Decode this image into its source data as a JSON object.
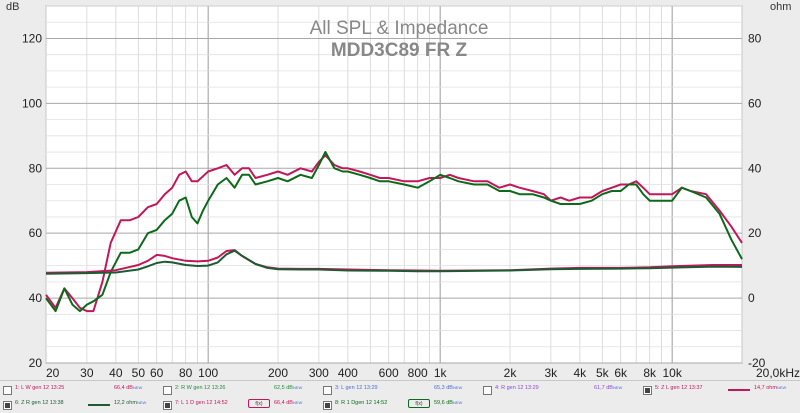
{
  "chart_data": {
    "type": "line",
    "title": "All SPL & Impedance",
    "subtitle": "MDD3C89 FR Z",
    "ylabel_left": "dB",
    "ylabel_right": "ohm",
    "x_scale": "log",
    "xlim": [
      20,
      20000
    ],
    "ylim_left": [
      20,
      130
    ],
    "ylim_right": [
      -20,
      90
    ],
    "x_ticks": [
      {
        "v": 20,
        "label": "20"
      },
      {
        "v": 30,
        "label": "30"
      },
      {
        "v": 40,
        "label": "40"
      },
      {
        "v": 50,
        "label": "50"
      },
      {
        "v": 60,
        "label": "60"
      },
      {
        "v": 80,
        "label": "80"
      },
      {
        "v": 100,
        "label": "100"
      },
      {
        "v": 200,
        "label": "200"
      },
      {
        "v": 300,
        "label": "300"
      },
      {
        "v": 400,
        "label": "400"
      },
      {
        "v": 600,
        "label": "600"
      },
      {
        "v": 800,
        "label": "800"
      },
      {
        "v": 1000,
        "label": "1k"
      },
      {
        "v": 2000,
        "label": "2k"
      },
      {
        "v": 3000,
        "label": "3k"
      },
      {
        "v": 4000,
        "label": "4k"
      },
      {
        "v": 5000,
        "label": "5k"
      },
      {
        "v": 6000,
        "label": "6k"
      },
      {
        "v": 8000,
        "label": "8k"
      },
      {
        "v": 10000,
        "label": "10k"
      },
      {
        "v": 20000,
        "label": "20,0kHz"
      }
    ],
    "y_ticks_left": [
      20,
      40,
      60,
      80,
      100,
      120
    ],
    "y_ticks_right": [
      -20,
      0,
      20,
      40,
      60,
      80
    ],
    "grid": true,
    "series": [
      {
        "name": "L 1 D gen 12 14:52",
        "axis": "left",
        "color": "#c0185a",
        "points": [
          [
            20,
            41
          ],
          [
            22,
            37
          ],
          [
            24,
            43
          ],
          [
            26,
            40
          ],
          [
            28,
            37
          ],
          [
            30,
            36
          ],
          [
            32,
            36
          ],
          [
            35,
            45
          ],
          [
            38,
            57
          ],
          [
            42,
            64
          ],
          [
            46,
            64
          ],
          [
            50,
            65
          ],
          [
            55,
            68
          ],
          [
            60,
            69
          ],
          [
            65,
            72
          ],
          [
            70,
            74
          ],
          [
            75,
            78
          ],
          [
            80,
            79
          ],
          [
            85,
            76
          ],
          [
            90,
            76
          ],
          [
            100,
            79
          ],
          [
            110,
            80
          ],
          [
            120,
            81
          ],
          [
            130,
            78
          ],
          [
            140,
            80
          ],
          [
            150,
            80
          ],
          [
            160,
            77
          ],
          [
            180,
            78
          ],
          [
            200,
            79
          ],
          [
            220,
            78
          ],
          [
            250,
            80
          ],
          [
            280,
            79
          ],
          [
            300,
            82
          ],
          [
            320,
            84
          ],
          [
            350,
            81
          ],
          [
            380,
            80
          ],
          [
            400,
            80
          ],
          [
            450,
            79
          ],
          [
            500,
            78
          ],
          [
            550,
            77
          ],
          [
            600,
            77
          ],
          [
            700,
            76
          ],
          [
            800,
            76
          ],
          [
            900,
            77
          ],
          [
            1000,
            77
          ],
          [
            1100,
            78
          ],
          [
            1200,
            77
          ],
          [
            1400,
            76
          ],
          [
            1600,
            76
          ],
          [
            1800,
            74
          ],
          [
            2000,
            75
          ],
          [
            2200,
            74
          ],
          [
            2500,
            73
          ],
          [
            2800,
            72
          ],
          [
            3000,
            70
          ],
          [
            3300,
            71
          ],
          [
            3600,
            70
          ],
          [
            4000,
            71
          ],
          [
            4500,
            71
          ],
          [
            5000,
            73
          ],
          [
            5500,
            74
          ],
          [
            6000,
            75
          ],
          [
            6500,
            75
          ],
          [
            7000,
            76
          ],
          [
            7500,
            74
          ],
          [
            8000,
            72
          ],
          [
            9000,
            72
          ],
          [
            10000,
            72
          ],
          [
            11000,
            74
          ],
          [
            12000,
            73
          ],
          [
            14000,
            72
          ],
          [
            16000,
            67
          ],
          [
            18000,
            62
          ],
          [
            20000,
            57
          ]
        ]
      },
      {
        "name": "R 1 D gen 12 14:52",
        "axis": "left",
        "color": "#0d6a1a",
        "points": [
          [
            20,
            40
          ],
          [
            22,
            36
          ],
          [
            24,
            43
          ],
          [
            26,
            38
          ],
          [
            28,
            36
          ],
          [
            30,
            38
          ],
          [
            32,
            39
          ],
          [
            35,
            41
          ],
          [
            38,
            48
          ],
          [
            42,
            54
          ],
          [
            46,
            54
          ],
          [
            50,
            55
          ],
          [
            55,
            60
          ],
          [
            60,
            61
          ],
          [
            65,
            64
          ],
          [
            70,
            66
          ],
          [
            75,
            70
          ],
          [
            80,
            71
          ],
          [
            85,
            65
          ],
          [
            90,
            63
          ],
          [
            95,
            67
          ],
          [
            100,
            70
          ],
          [
            110,
            75
          ],
          [
            120,
            77
          ],
          [
            130,
            74
          ],
          [
            140,
            78
          ],
          [
            150,
            78
          ],
          [
            160,
            75
          ],
          [
            180,
            76
          ],
          [
            200,
            77
          ],
          [
            220,
            76
          ],
          [
            250,
            78
          ],
          [
            280,
            77
          ],
          [
            300,
            81
          ],
          [
            320,
            85
          ],
          [
            350,
            80
          ],
          [
            380,
            79
          ],
          [
            400,
            79
          ],
          [
            450,
            78
          ],
          [
            500,
            77
          ],
          [
            550,
            76
          ],
          [
            600,
            76
          ],
          [
            700,
            75
          ],
          [
            800,
            74
          ],
          [
            900,
            76
          ],
          [
            1000,
            78
          ],
          [
            1100,
            77
          ],
          [
            1200,
            76
          ],
          [
            1400,
            75
          ],
          [
            1600,
            75
          ],
          [
            1800,
            73
          ],
          [
            2000,
            73
          ],
          [
            2200,
            72
          ],
          [
            2500,
            72
          ],
          [
            2800,
            71
          ],
          [
            3000,
            70
          ],
          [
            3300,
            69
          ],
          [
            3600,
            69
          ],
          [
            4000,
            69
          ],
          [
            4500,
            70
          ],
          [
            5000,
            72
          ],
          [
            5500,
            73
          ],
          [
            6000,
            73
          ],
          [
            6500,
            75
          ],
          [
            7000,
            75
          ],
          [
            7500,
            72
          ],
          [
            8000,
            70
          ],
          [
            9000,
            70
          ],
          [
            10000,
            70
          ],
          [
            11000,
            74
          ],
          [
            12000,
            73
          ],
          [
            14000,
            71
          ],
          [
            16000,
            66
          ],
          [
            18000,
            58
          ],
          [
            20000,
            52
          ]
        ]
      },
      {
        "name": "Z L gen 12 13:37",
        "axis": "right",
        "color": "#c0185a",
        "points": [
          [
            20,
            7.8
          ],
          [
            30,
            8.0
          ],
          [
            40,
            8.6
          ],
          [
            50,
            10.2
          ],
          [
            55,
            11.5
          ],
          [
            60,
            13.3
          ],
          [
            65,
            13.0
          ],
          [
            70,
            12.3
          ],
          [
            80,
            11.5
          ],
          [
            90,
            11.3
          ],
          [
            100,
            11.5
          ],
          [
            110,
            12.5
          ],
          [
            120,
            14.5
          ],
          [
            130,
            14.8
          ],
          [
            140,
            13.0
          ],
          [
            160,
            10.5
          ],
          [
            180,
            9.5
          ],
          [
            200,
            9.1
          ],
          [
            250,
            9.0
          ],
          [
            300,
            9.0
          ],
          [
            400,
            8.8
          ],
          [
            600,
            8.6
          ],
          [
            800,
            8.5
          ],
          [
            1000,
            8.4
          ],
          [
            2000,
            8.6
          ],
          [
            3000,
            9.1
          ],
          [
            4000,
            9.3
          ],
          [
            6000,
            9.3
          ],
          [
            8000,
            9.5
          ],
          [
            10000,
            9.8
          ],
          [
            15000,
            10.2
          ],
          [
            20000,
            10.2
          ]
        ]
      },
      {
        "name": "Z R gen 12 13:38",
        "axis": "right",
        "color": "#1d5b33",
        "points": [
          [
            20,
            7.5
          ],
          [
            30,
            7.7
          ],
          [
            40,
            7.9
          ],
          [
            50,
            8.8
          ],
          [
            55,
            9.8
          ],
          [
            60,
            10.8
          ],
          [
            65,
            11.2
          ],
          [
            70,
            11.0
          ],
          [
            80,
            10.2
          ],
          [
            90,
            9.9
          ],
          [
            100,
            10.0
          ],
          [
            110,
            11.0
          ],
          [
            120,
            13.5
          ],
          [
            130,
            14.6
          ],
          [
            140,
            13.0
          ],
          [
            160,
            10.5
          ],
          [
            180,
            9.3
          ],
          [
            200,
            8.9
          ],
          [
            250,
            8.8
          ],
          [
            300,
            8.8
          ],
          [
            400,
            8.5
          ],
          [
            600,
            8.4
          ],
          [
            800,
            8.3
          ],
          [
            1000,
            8.3
          ],
          [
            2000,
            8.5
          ],
          [
            3000,
            8.9
          ],
          [
            4000,
            9.0
          ],
          [
            6000,
            9.1
          ],
          [
            8000,
            9.2
          ],
          [
            10000,
            9.4
          ],
          [
            15000,
            9.7
          ],
          [
            20000,
            9.6
          ]
        ]
      }
    ]
  },
  "legend": {
    "row1": [
      {
        "name": "1: L W gen 12 13:25",
        "value": "66,4 dB",
        "sub": "NEW",
        "checked": false,
        "color": "#c0185a",
        "line": "none"
      },
      {
        "name": "2: R W gen 12 13:26",
        "value": "62,5 dB",
        "sub": "NEW",
        "checked": false,
        "color": "#1d8a3a",
        "line": "none"
      },
      {
        "name": "3: L gen 12 13:29",
        "value": "65,3 dB",
        "sub": "NEW",
        "checked": false,
        "color": "#4a6cd4",
        "line": "none"
      },
      {
        "name": "4: R gen 12 13:29",
        "value": "61,7 dB",
        "sub": "NEW",
        "checked": false,
        "color": "#8a4ad4",
        "line": "none"
      },
      {
        "name": "5: Z L gen 12 13:37",
        "value": "14,7 ohm",
        "sub": "NEW",
        "checked": true,
        "color": "#c0185a",
        "line": "solid"
      }
    ],
    "row2": [
      {
        "name": "6: Z R gen 12 13:38",
        "value": "12,2 ohm",
        "sub": "NEW",
        "checked": true,
        "color": "#1d5b33",
        "line": "solid"
      },
      {
        "name": "7: L 1 D gen 12 14:52",
        "value": "66,4 dB",
        "sub": "NEW",
        "checked": true,
        "color": "#c0185a",
        "line": "tag"
      },
      {
        "name": "8: R 1 Dgen 12 14:52",
        "value": "59,6 dB",
        "sub": "NEW",
        "checked": true,
        "color": "#0d6a1a",
        "line": "tag"
      }
    ],
    "tag_label": "f(x)"
  }
}
